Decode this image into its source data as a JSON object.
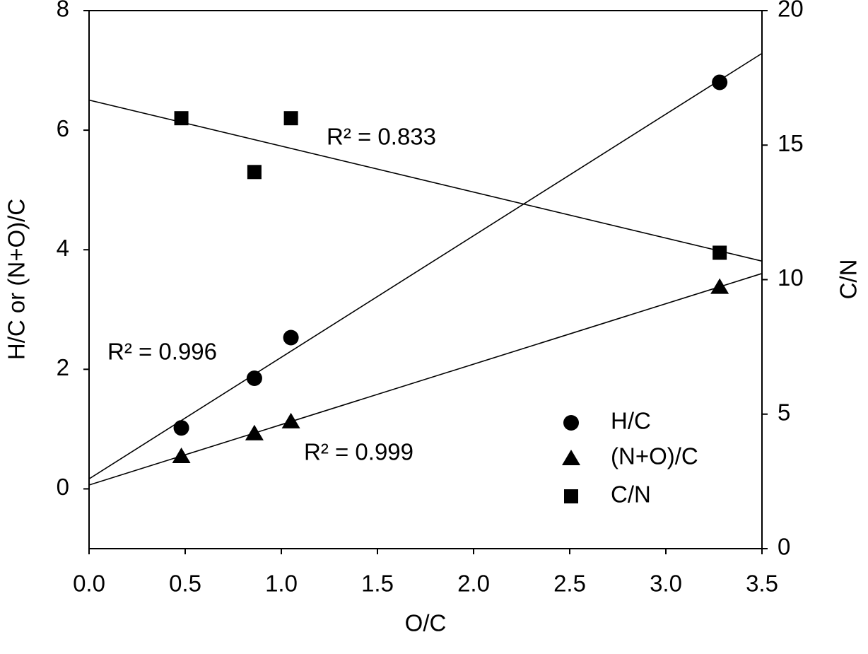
{
  "chart_data": {
    "type": "scatter",
    "x_label": "O/C",
    "y_label": "H/C or (N+O)/C",
    "y2_label": "C/N",
    "x": [
      0.48,
      0.86,
      1.05,
      3.28
    ],
    "series": [
      {
        "name": "H/C",
        "color": "#000000",
        "marker": "circle",
        "values": [
          1.02,
          1.85,
          2.53,
          6.8
        ]
      },
      {
        "name": "(N+O)/C",
        "color": "#000000",
        "marker": "triangle",
        "values": [
          0.55,
          0.93,
          1.13,
          3.38
        ]
      },
      {
        "name": "C/N",
        "color": "#000000",
        "marker": "square",
        "axis": "y2",
        "values": [
          16.0,
          14.0,
          16.0,
          11.0
        ]
      }
    ],
    "trendline": "linear",
    "annotations": [
      "R² = 0.833",
      "R² = 0.996",
      "R² = 0.999"
    ],
    "xlim": [
      0,
      3.5
    ],
    "xticks": [
      {
        "value": 0,
        "label": "0.0"
      },
      0.5,
      {
        "value": 1,
        "label": "1.0"
      },
      1.5,
      {
        "value": 2,
        "label": "2.0"
      },
      2.5,
      {
        "value": 3,
        "label": "3.0"
      },
      3.5
    ],
    "ylim": [
      -1,
      8
    ],
    "yticks": [
      0,
      2,
      4,
      6,
      8
    ],
    "y2lim": [
      0,
      20
    ],
    "y2ticks": [
      0,
      5,
      10,
      15,
      20
    ],
    "grid": false
  }
}
